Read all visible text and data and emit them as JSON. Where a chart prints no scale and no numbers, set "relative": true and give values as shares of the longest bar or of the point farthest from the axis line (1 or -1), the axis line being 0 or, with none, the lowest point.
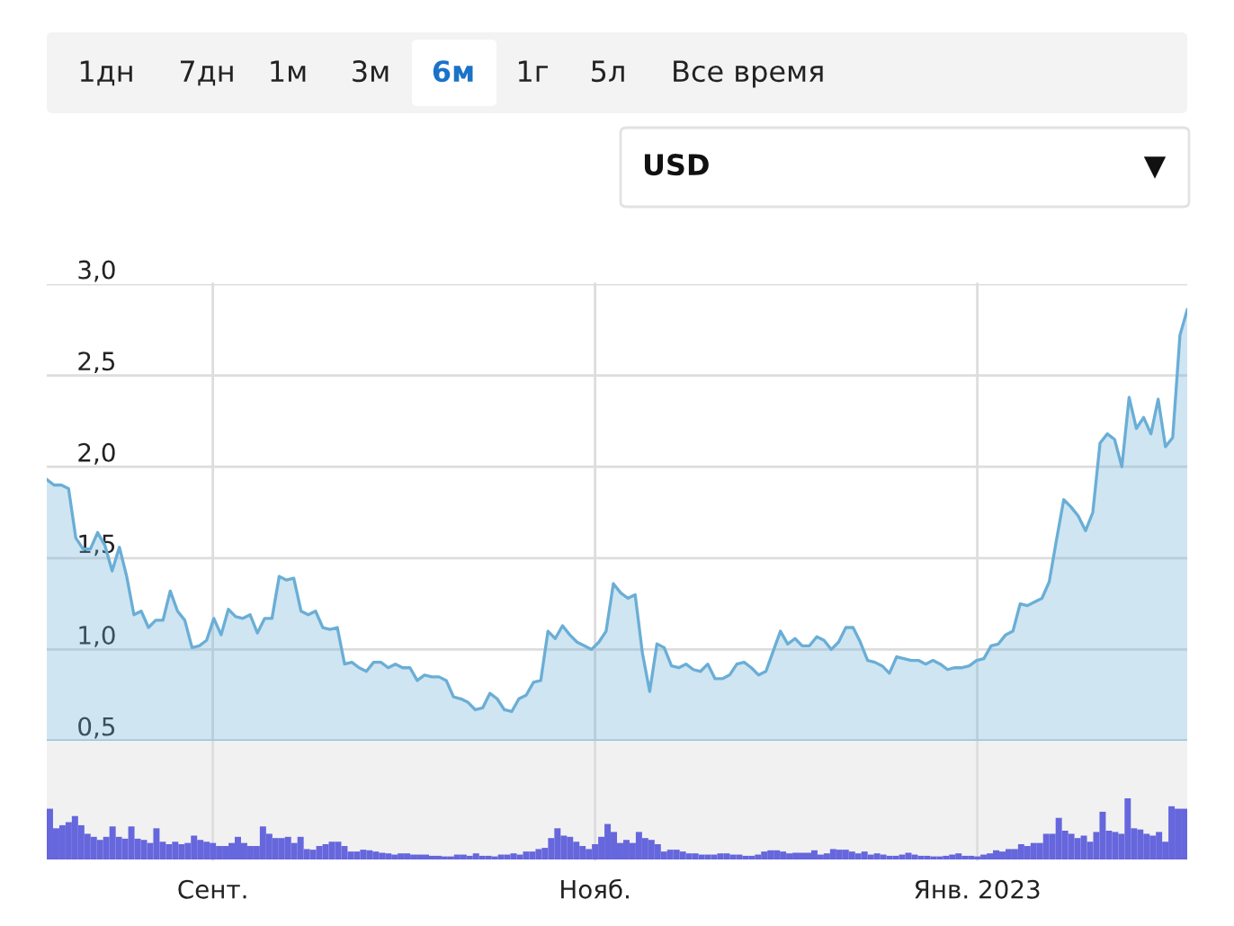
{
  "chart_data": [
    {
      "type": "area",
      "annotations": [
        "1дн",
        "7дн",
        "1м",
        "3м",
        "6м",
        "1г",
        "5л",
        "Все время",
        "USD",
        "▼"
      ],
      "categories": [
        null,
        null,
        null,
        null,
        null,
        null,
        null,
        null,
        null,
        null,
        null,
        null,
        null,
        null,
        null,
        null,
        null,
        null,
        null,
        null,
        null,
        null,
        null,
        null,
        null,
        null,
        null,
        null,
        null,
        null,
        null,
        null,
        null,
        null,
        null,
        null,
        null,
        null,
        null,
        null,
        null,
        null,
        null,
        null,
        null,
        null,
        null,
        null,
        null,
        null,
        null,
        null,
        null,
        null,
        null,
        null,
        null,
        null,
        null,
        null,
        null,
        null,
        null,
        null,
        null,
        null,
        null,
        null,
        null,
        null,
        null,
        null,
        null,
        null,
        null,
        null,
        null,
        null,
        null,
        null,
        null,
        null,
        null,
        null,
        null,
        null,
        null,
        null,
        null,
        null,
        null,
        null,
        null,
        null,
        null,
        null,
        null,
        null,
        null,
        null,
        null,
        null,
        null,
        null,
        null,
        null,
        null,
        null,
        null,
        null,
        null,
        null,
        null,
        null,
        null,
        null,
        null,
        null,
        null,
        null,
        null,
        null,
        null,
        null,
        null,
        null,
        null,
        null,
        null,
        null,
        null,
        null,
        null,
        null,
        null,
        null,
        null,
        null,
        null,
        null,
        null,
        null,
        null,
        null,
        null,
        null,
        null,
        null,
        null,
        null,
        null,
        null,
        null,
        null,
        null,
        null,
        null,
        null
      ],
      "series": [
        {
          "color": "#6aaed6",
          "values": [
            1.93,
            1.9,
            1.9,
            1.88,
            1.61,
            1.55,
            1.55,
            1.64,
            1.57,
            1.43,
            1.56,
            1.4,
            1.19,
            1.21,
            1.12,
            1.16,
            1.16,
            1.32,
            1.21,
            1.16,
            1.01,
            1.02,
            1.05,
            1.17,
            1.08,
            1.22,
            1.18,
            1.17,
            1.19,
            1.09,
            1.17,
            1.17,
            1.4,
            1.38,
            1.39,
            1.21,
            1.19,
            1.21,
            1.12,
            1.11,
            1.12,
            0.92,
            0.93,
            0.9,
            0.88,
            0.93,
            0.93,
            0.9,
            0.92,
            0.9,
            0.9,
            0.83,
            0.86,
            0.85,
            0.85,
            0.83,
            0.74,
            0.73,
            0.71,
            0.67,
            0.68,
            0.76,
            0.73,
            0.67,
            0.66,
            0.73,
            0.75,
            0.82,
            0.83,
            1.1,
            1.06,
            1.13,
            1.08,
            1.04,
            1.02,
            1.0,
            1.04,
            1.1,
            1.36,
            1.31,
            1.28,
            1.3,
            0.98,
            0.77,
            1.03,
            1.01,
            0.91,
            0.9,
            0.92,
            0.89,
            0.88,
            0.92,
            0.84,
            0.84,
            0.86,
            0.92,
            0.93,
            0.9,
            0.86,
            0.88,
            0.99,
            1.1,
            1.03,
            1.06,
            1.02,
            1.02,
            1.07,
            1.05,
            1.0,
            1.04,
            1.12,
            1.12,
            1.04,
            0.94,
            0.93,
            0.91,
            0.87,
            0.96,
            0.95,
            0.94,
            0.94,
            0.92,
            0.94,
            0.92,
            0.89,
            0.9,
            0.9,
            0.91,
            0.94,
            0.95,
            1.02,
            1.03,
            1.08,
            1.1,
            1.25,
            1.24,
            1.26,
            1.28,
            1.37,
            1.6,
            1.82,
            1.78,
            1.73,
            1.65,
            1.75,
            2.13,
            2.18,
            2.15,
            2.0,
            2.38,
            2.21,
            2.27,
            2.18,
            2.37,
            2.11,
            2.16,
            2.72,
            2.86
          ]
        }
      ],
      "ylim": [
        0.5,
        3.0
      ],
      "yticks": [
        {
          "value": 0.5,
          "label": "0,5"
        },
        {
          "value": 1.0,
          "label": "1,0"
        },
        {
          "value": 1.5,
          "label": "1,5"
        },
        {
          "value": 2.0,
          "label": "2,0"
        },
        {
          "value": 2.5,
          "label": "2,5"
        },
        {
          "value": 3.0,
          "label": "3,0"
        }
      ],
      "grid": "y",
      "tick_labels": "y"
    },
    {
      "type": "bar",
      "relative": true,
      "color": "#6666dd",
      "grid": "x",
      "categories": [
        null,
        null,
        null,
        null,
        null,
        null,
        null,
        null,
        null,
        null,
        null,
        null,
        null,
        null,
        null,
        null,
        null,
        null,
        null,
        null,
        null,
        null,
        null,
        null,
        null,
        null,
        "Сент.",
        null,
        null,
        null,
        null,
        null,
        null,
        null,
        null,
        null,
        null,
        null,
        null,
        null,
        null,
        null,
        null,
        null,
        null,
        null,
        null,
        null,
        null,
        null,
        null,
        null,
        null,
        null,
        null,
        null,
        null,
        null,
        null,
        null,
        null,
        null,
        null,
        null,
        null,
        null,
        null,
        null,
        null,
        null,
        null,
        null,
        null,
        null,
        null,
        null,
        null,
        null,
        null,
        null,
        null,
        null,
        null,
        null,
        null,
        null,
        null,
        "Нояб.",
        null,
        null,
        null,
        null,
        null,
        null,
        null,
        null,
        null,
        null,
        null,
        null,
        null,
        null,
        null,
        null,
        null,
        null,
        null,
        null,
        null,
        null,
        null,
        null,
        null,
        null,
        null,
        null,
        null,
        null,
        null,
        null,
        null,
        null,
        null,
        null,
        null,
        null,
        null,
        null,
        null,
        null,
        null,
        null,
        null,
        null,
        null,
        null,
        null,
        null,
        null,
        null,
        null,
        null,
        null,
        null,
        null,
        null,
        null,
        null,
        "Янв. 2023",
        null,
        null,
        null,
        null,
        null,
        null,
        null,
        null,
        null,
        null,
        null,
        null,
        null,
        null,
        null,
        null,
        null,
        null,
        null,
        null,
        null,
        null,
        null,
        null,
        null,
        null,
        null,
        null,
        null,
        null,
        null,
        null,
        null
      ],
      "values": [
        0.83,
        0.51,
        0.56,
        0.61,
        0.71,
        0.56,
        0.42,
        0.37,
        0.32,
        0.37,
        0.54,
        0.37,
        0.34,
        0.54,
        0.34,
        0.32,
        0.27,
        0.51,
        0.29,
        0.25,
        0.29,
        0.25,
        0.27,
        0.39,
        0.32,
        0.29,
        0.27,
        0.22,
        0.22,
        0.27,
        0.37,
        0.27,
        0.22,
        0.22,
        0.54,
        0.42,
        0.35,
        0.35,
        0.37,
        0.27,
        0.37,
        0.17,
        0.16,
        0.22,
        0.25,
        0.29,
        0.29,
        0.22,
        0.13,
        0.13,
        0.16,
        0.15,
        0.13,
        0.11,
        0.1,
        0.08,
        0.1,
        0.1,
        0.08,
        0.08,
        0.08,
        0.06,
        0.06,
        0.05,
        0.05,
        0.08,
        0.08,
        0.06,
        0.1,
        0.06,
        0.06,
        0.05,
        0.08,
        0.08,
        0.1,
        0.08,
        0.13,
        0.13,
        0.17,
        0.19,
        0.35,
        0.51,
        0.39,
        0.37,
        0.29,
        0.22,
        0.17,
        0.25,
        0.37,
        0.58,
        0.45,
        0.27,
        0.32,
        0.27,
        0.45,
        0.35,
        0.32,
        0.25,
        0.13,
        0.16,
        0.16,
        0.13,
        0.1,
        0.1,
        0.08,
        0.08,
        0.08,
        0.1,
        0.1,
        0.08,
        0.08,
        0.06,
        0.06,
        0.08,
        0.13,
        0.15,
        0.15,
        0.13,
        0.1,
        0.11,
        0.11,
        0.11,
        0.15,
        0.08,
        0.1,
        0.17,
        0.16,
        0.16,
        0.13,
        0.1,
        0.13,
        0.08,
        0.1,
        0.08,
        0.06,
        0.06,
        0.08,
        0.11,
        0.08,
        0.06,
        0.06,
        0.05,
        0.05,
        0.06,
        0.08,
        0.1,
        0.06,
        0.06,
        0.05,
        0.08,
        0.1,
        0.15,
        0.13,
        0.17,
        0.17,
        0.25,
        0.22,
        0.27,
        0.27,
        0.42,
        0.42,
        0.68,
        0.47,
        0.42,
        0.35,
        0.39,
        0.29,
        0.45,
        0.78,
        0.47,
        0.45,
        0.42,
        1.0,
        0.51,
        0.49,
        0.42,
        0.39,
        0.45,
        0.29,
        0.87,
        0.83,
        0.83
      ]
    }
  ]
}
